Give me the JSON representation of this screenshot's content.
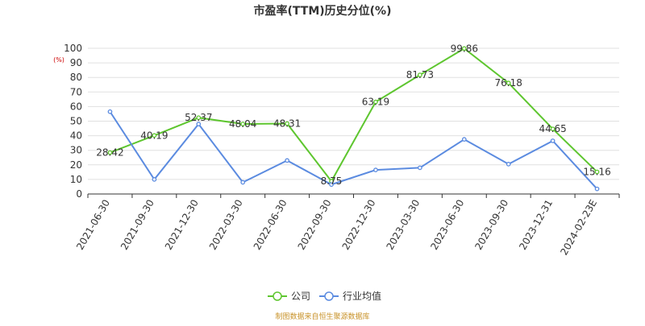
{
  "chart_data": {
    "type": "line",
    "title": "市盈率(TTM)历史分位(%)",
    "y_unit": "(%)",
    "ylim": [
      0,
      100
    ],
    "y_ticks": [
      0,
      10,
      20,
      30,
      40,
      50,
      60,
      70,
      80,
      90,
      100
    ],
    "categories": [
      "2021-06-30",
      "2021-09-30",
      "2021-12-30",
      "2022-03-30",
      "2022-06-30",
      "2022-09-30",
      "2022-12-30",
      "2023-03-30",
      "2023-06-30",
      "2023-09-30",
      "2023-12-31",
      "2024-02-23E"
    ],
    "series": [
      {
        "name": "公司",
        "color": "#5ec62f",
        "values": [
          28.42,
          40.19,
          52.37,
          48.04,
          48.31,
          8.75,
          63.19,
          81.73,
          99.86,
          76.18,
          44.65,
          15.16
        ],
        "show_labels": true
      },
      {
        "name": "行业均值",
        "color": "#5b8be0",
        "values": [
          56.5,
          10.0,
          48.0,
          8.0,
          23.0,
          6.5,
          16.5,
          18.0,
          37.5,
          20.5,
          36.5,
          3.5
        ],
        "show_labels": false
      }
    ],
    "grid": true,
    "legend_position": "bottom-center",
    "source": "制图数据来自恒生聚源数据库"
  }
}
